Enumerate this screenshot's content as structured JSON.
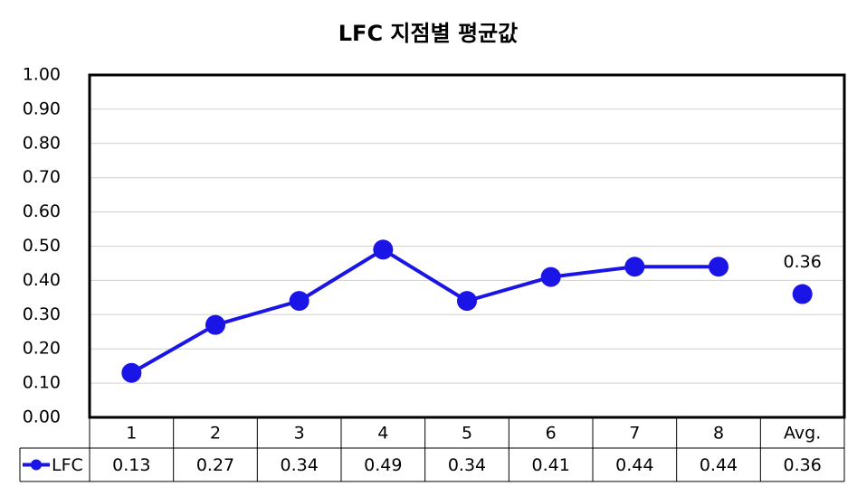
{
  "chart_data": {
    "type": "line",
    "title": "LFC 지점별 평균값",
    "categories": [
      "1",
      "2",
      "3",
      "4",
      "5",
      "6",
      "7",
      "8",
      "Avg."
    ],
    "series": [
      {
        "name": "LFC",
        "color": "#1a14e6",
        "values": [
          0.13,
          0.27,
          0.34,
          0.49,
          0.34,
          0.41,
          0.44,
          0.44,
          0.36
        ]
      }
    ],
    "ylim": [
      0,
      1
    ],
    "yticks": [
      {
        "value": 0,
        "label": "0.00"
      },
      {
        "value": 0.1,
        "label": "0.10"
      },
      {
        "value": 0.2,
        "label": "0.20"
      },
      {
        "value": 0.3,
        "label": "0.30"
      },
      {
        "value": 0.4,
        "label": "0.40"
      },
      {
        "value": 0.5,
        "label": "0.50"
      },
      {
        "value": 0.6,
        "label": "0.60"
      },
      {
        "value": 0.7,
        "label": "0.70"
      },
      {
        "value": 0.8,
        "label": "0.80"
      },
      {
        "value": 0.9,
        "label": "0.90"
      },
      {
        "value": 1,
        "label": "1.00"
      }
    ],
    "grid": true,
    "data_table": true
  }
}
